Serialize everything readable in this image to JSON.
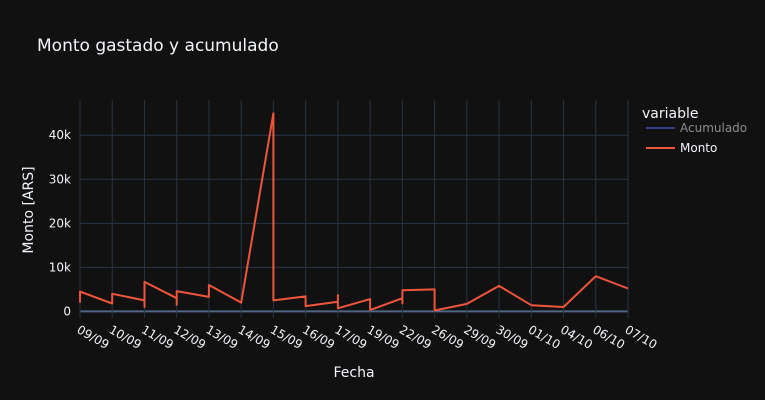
{
  "chart_data": {
    "type": "line",
    "title": "Monto gastado y acumulado",
    "xlabel": "Fecha",
    "ylabel": "Monto [ARS]",
    "x_ticks": [
      "09/09",
      "10/09",
      "11/09",
      "12/09",
      "13/09",
      "14/09",
      "15/09",
      "16/09",
      "17/09",
      "19/09",
      "22/09",
      "26/09",
      "29/09",
      "30/09",
      "01/10",
      "04/10",
      "06/10",
      "07/10"
    ],
    "y_ticks": [
      "0",
      "10k",
      "20k",
      "30k",
      "40k"
    ],
    "ylim": [
      -1500,
      48000
    ],
    "grid": true,
    "legend": {
      "title": "variable",
      "position": "right",
      "entries": [
        {
          "name": "Acumulado",
          "color": "#636efa",
          "visible": false
        },
        {
          "name": "Monto",
          "color": "#ef553b",
          "visible": true
        }
      ]
    },
    "series": [
      {
        "name": "Monto",
        "color": "#ef553b",
        "points": [
          [
            0,
            2000
          ],
          [
            0,
            4500
          ],
          [
            1,
            1800
          ],
          [
            1,
            4000
          ],
          [
            2,
            2500
          ],
          [
            2,
            1000
          ],
          [
            2,
            6700
          ],
          [
            3,
            3000
          ],
          [
            3,
            1500
          ],
          [
            3,
            4600
          ],
          [
            4,
            3300
          ],
          [
            4,
            6000
          ],
          [
            5,
            2000
          ],
          [
            6,
            45000
          ],
          [
            6,
            2500
          ],
          [
            7,
            3400
          ],
          [
            7,
            1200
          ],
          [
            8,
            2200
          ],
          [
            8,
            3700
          ],
          [
            8,
            700
          ],
          [
            9,
            2800
          ],
          [
            9,
            300
          ],
          [
            10,
            3000
          ],
          [
            10,
            1800
          ],
          [
            10,
            4800
          ],
          [
            11,
            5000
          ],
          [
            11,
            200
          ],
          [
            12,
            1700
          ],
          [
            13,
            5800
          ],
          [
            14,
            1400
          ],
          [
            15,
            1000
          ],
          [
            16,
            8000
          ],
          [
            17,
            5200
          ]
        ]
      }
    ]
  }
}
